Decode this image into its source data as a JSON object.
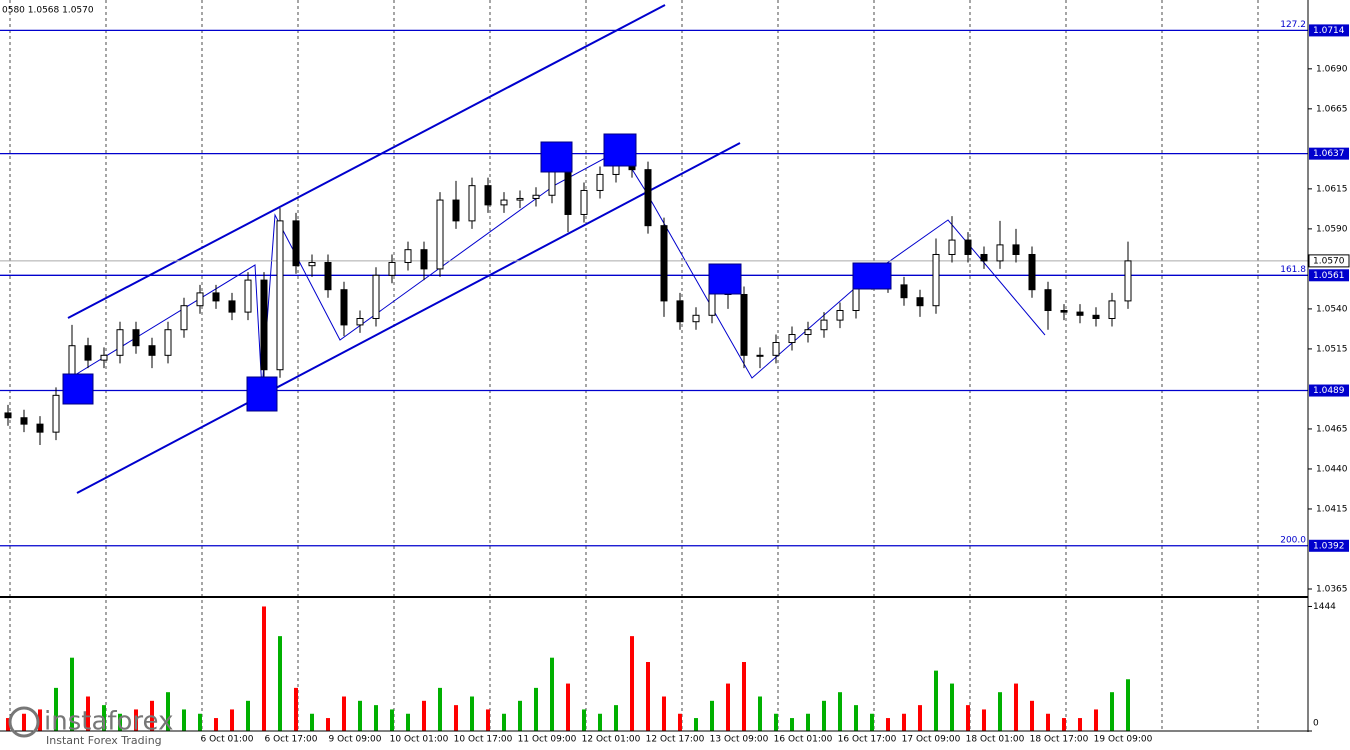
{
  "chart_data": [
    {
      "type": "candlestick",
      "header": "0580 1.0568 1.0570",
      "ylim": [
        1.036,
        1.0733
      ],
      "yticks": [
        {
          "value": 1.069,
          "label": "1.0690"
        },
        1.0665,
        1.0615,
        {
          "value": 1.059,
          "label": "1.0590"
        },
        {
          "value": 1.054,
          "label": "1.0540"
        },
        1.0515,
        1.0465,
        {
          "value": 1.044,
          "label": "1.0440"
        },
        1.0415,
        1.0365
      ],
      "xticks": [
        "6 Oct 01:00",
        "6 Oct 17:00",
        "9 Oct 09:00",
        "10 Oct 01:00",
        "10 Oct 17:00",
        "11 Oct 09:00",
        "12 Oct 01:00",
        "12 Oct 17:00",
        "13 Oct 09:00",
        "16 Oct 01:00",
        "16 Oct 17:00",
        "17 Oct 09:00",
        "18 Oct 01:00",
        "18 Oct 17:00",
        "19 Oct 09:00"
      ],
      "levels": [
        {
          "value": 1.0714,
          "fib": "127.2"
        },
        {
          "value": 1.0637
        },
        {
          "value": 1.0561,
          "fib": "161.8"
        },
        {
          "value": 1.0489
        },
        {
          "value": 1.0392,
          "fib": "200.0"
        }
      ],
      "level_color": "#0000cd",
      "last": {
        "value": 1.057,
        "label": "1.0570"
      },
      "open": [
        1.0475,
        1.0472,
        1.0468,
        1.0463,
        1.0486,
        1.0517,
        1.0508,
        1.0511,
        1.0527,
        1.0517,
        1.0511,
        1.0527,
        1.0542,
        1.055,
        1.0545,
        1.0538,
        1.0558,
        1.0502,
        1.0595,
        1.0567,
        1.0569,
        1.0552,
        1.053,
        1.0534,
        1.0561,
        1.0569,
        1.0577,
        1.0565,
        1.0608,
        1.0595,
        1.0617,
        1.0605,
        1.0608,
        1.0609,
        1.0611,
        1.063,
        1.0599,
        1.0614,
        1.0624,
        1.0636,
        1.0627,
        1.0592,
        1.0545,
        1.0532,
        1.0536,
        1.0555,
        1.0549,
        1.0511,
        1.0511,
        1.0519,
        1.0524,
        1.0527,
        1.0533,
        1.0539,
        1.0557,
        1.0561,
        1.0555,
        1.0547,
        1.0542,
        1.0574,
        1.0583,
        1.0574,
        1.057,
        1.058,
        1.0574,
        1.0552,
        1.0539,
        1.0538,
        1.0536,
        1.0534,
        1.0545
      ],
      "high": [
        1.048,
        1.0477,
        1.0473,
        1.0491,
        1.053,
        1.0522,
        1.0516,
        1.0532,
        1.0532,
        1.0522,
        1.0532,
        1.0547,
        1.0555,
        1.0555,
        1.055,
        1.0563,
        1.0563,
        1.0603,
        1.06,
        1.0574,
        1.0574,
        1.0557,
        1.0539,
        1.0566,
        1.0574,
        1.0582,
        1.0582,
        1.0613,
        1.062,
        1.0622,
        1.0622,
        1.0613,
        1.0614,
        1.0616,
        1.0638,
        1.0635,
        1.0619,
        1.0629,
        1.0642,
        1.0641,
        1.0632,
        1.0597,
        1.055,
        1.0541,
        1.0562,
        1.056,
        1.0554,
        1.0516,
        1.0524,
        1.0529,
        1.0532,
        1.0538,
        1.0544,
        1.0562,
        1.0566,
        1.0566,
        1.056,
        1.0552,
        1.0584,
        1.0598,
        1.0588,
        1.0579,
        1.0595,
        1.059,
        1.0579,
        1.0557,
        1.0543,
        1.0543,
        1.0541,
        1.055,
        1.0582
      ],
      "low": [
        1.0467,
        1.0463,
        1.0455,
        1.0458,
        1.0481,
        1.0503,
        1.0503,
        1.0506,
        1.0512,
        1.0503,
        1.0506,
        1.0522,
        1.0537,
        1.054,
        1.0533,
        1.0533,
        1.0489,
        1.0497,
        1.0562,
        1.056,
        1.0547,
        1.0523,
        1.0525,
        1.0529,
        1.0556,
        1.0564,
        1.0558,
        1.056,
        1.059,
        1.059,
        1.06,
        1.06,
        1.0603,
        1.0604,
        1.0606,
        1.0588,
        1.0594,
        1.0609,
        1.0619,
        1.0622,
        1.0587,
        1.0535,
        1.0527,
        1.0527,
        1.0531,
        1.054,
        1.0503,
        1.0503,
        1.0506,
        1.0514,
        1.0519,
        1.0522,
        1.0528,
        1.0534,
        1.0552,
        1.055,
        1.0542,
        1.0535,
        1.0537,
        1.0569,
        1.0569,
        1.0565,
        1.0565,
        1.0569,
        1.0547,
        1.0527,
        1.0533,
        1.0531,
        1.0529,
        1.0529,
        1.054
      ],
      "close": [
        1.0472,
        1.0468,
        1.0463,
        1.0486,
        1.0517,
        1.0508,
        1.0511,
        1.0527,
        1.0517,
        1.0511,
        1.0527,
        1.0542,
        1.055,
        1.0545,
        1.0538,
        1.0558,
        1.0502,
        1.0595,
        1.0567,
        1.0569,
        1.0552,
        1.053,
        1.0534,
        1.0561,
        1.0569,
        1.0577,
        1.0565,
        1.0608,
        1.0595,
        1.0617,
        1.0605,
        1.0608,
        1.0609,
        1.0611,
        1.063,
        1.0599,
        1.0614,
        1.0624,
        1.0636,
        1.0627,
        1.0592,
        1.0545,
        1.0532,
        1.0536,
        1.0555,
        1.0549,
        1.0511,
        1.0511,
        1.0519,
        1.0524,
        1.0527,
        1.0533,
        1.0539,
        1.0557,
        1.0561,
        1.0555,
        1.0547,
        1.0542,
        1.0574,
        1.0583,
        1.0574,
        1.057,
        1.058,
        1.0574,
        1.0552,
        1.0539,
        1.0538,
        1.0536,
        1.0534,
        1.0545,
        1.057
      ]
    },
    {
      "type": "bar",
      "ylim": [
        0,
        1519
      ],
      "yticks": [
        0,
        1444
      ],
      "up_color": "#00b000",
      "down_color": "#ff0000",
      "values": [
        150,
        200,
        250,
        500,
        850,
        400,
        300,
        200,
        250,
        350,
        450,
        250,
        200,
        150,
        250,
        350,
        1444,
        1100,
        500,
        200,
        150,
        400,
        350,
        300,
        250,
        200,
        350,
        500,
        300,
        400,
        250,
        200,
        350,
        500,
        850,
        550,
        250,
        200,
        300,
        1100,
        800,
        400,
        200,
        150,
        350,
        550,
        800,
        400,
        200,
        150,
        200,
        350,
        450,
        300,
        200,
        150,
        200,
        300,
        700,
        550,
        300,
        250,
        450,
        550,
        350,
        200,
        150,
        150,
        250,
        450,
        600
      ]
    }
  ],
  "watermark": {
    "brand": "instaforex",
    "tagline": "Instant Forex Trading"
  }
}
